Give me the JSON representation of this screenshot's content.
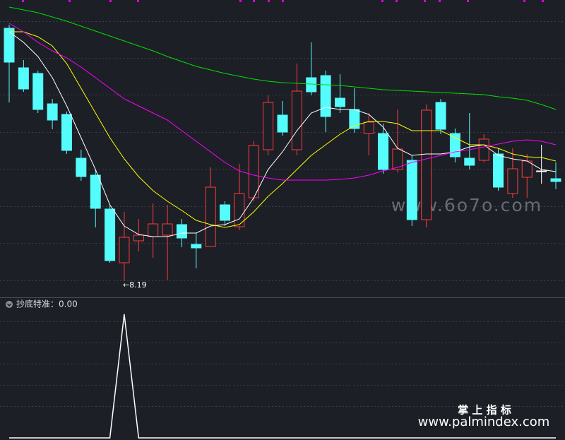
{
  "chart_data": [
    {
      "type": "candlestick",
      "open": [
        11.77,
        11.21,
        11.13,
        10.7,
        10.55,
        9.93,
        9.69,
        9.21,
        8.45,
        8.76,
        8.82,
        8.84,
        8.99,
        8.71,
        8.68,
        9.27,
        8.96,
        9.37,
        10.05,
        10.54,
        10.05,
        11.07,
        11.1,
        10.78,
        10.62,
        10.28,
        10.28,
        9.77,
        9.9,
        9.06,
        10.72,
        10.28,
        9.93,
        9.9,
        9.99,
        9.43,
        9.66,
        9.75,
        9.64
      ],
      "close": [
        11.29,
        10.91,
        10.62,
        10.47,
        10.04,
        9.67,
        9.22,
        8.48,
        8.81,
        8.84,
        9.0,
        9.0,
        8.8,
        8.66,
        9.52,
        9.05,
        9.43,
        10.11,
        10.72,
        10.3,
        10.88,
        10.87,
        10.52,
        10.66,
        10.35,
        10.44,
        9.77,
        10.06,
        9.06,
        10.61,
        10.34,
        9.95,
        9.83,
        10.2,
        9.52,
        9.78,
        9.89,
        9.75,
        9.6
      ],
      "high": [
        11.82,
        11.32,
        11.17,
        10.77,
        10.59,
        10.05,
        9.77,
        9.27,
        9.17,
        9.07,
        9.29,
        9.27,
        9.07,
        8.87,
        9.8,
        9.32,
        9.85,
        10.17,
        10.82,
        10.74,
        11.27,
        11.57,
        11.17,
        11.12,
        10.92,
        10.57,
        10.42,
        10.62,
        9.97,
        10.69,
        10.77,
        10.35,
        10.57,
        10.27,
        10.07,
        10.07,
        9.99,
        10.12,
        9.87
      ],
      "low": [
        10.72,
        10.87,
        10.57,
        10.34,
        9.99,
        9.61,
        8.95,
        8.45,
        8.19,
        8.61,
        8.52,
        8.21,
        8.67,
        8.37,
        8.68,
        8.97,
        8.91,
        9.32,
        9.97,
        10.25,
        9.97,
        10.82,
        10.3,
        10.57,
        10.29,
        9.97,
        9.71,
        9.73,
        8.97,
        8.95,
        10.27,
        9.87,
        9.77,
        9.87,
        9.47,
        9.37,
        9.37,
        9.57,
        9.49
      ],
      "up_color": "#ff3b3b",
      "down_color": "#54fcfc",
      "flat_color": "#ffffff",
      "series": [
        {
          "color": "#ffffff",
          "values": [
            11.72,
            11.57,
            11.37,
            11.07,
            10.67,
            10.22,
            9.77,
            9.27,
            8.97,
            8.85,
            8.82,
            8.82,
            8.87,
            8.87,
            8.97,
            8.99,
            9.07,
            9.37,
            9.77,
            10.02,
            10.32,
            10.57,
            10.65,
            10.62,
            10.62,
            10.55,
            10.37,
            10.07,
            9.97,
            9.99,
            9.99,
            10.02,
            10.09,
            10.12,
            9.97,
            9.92,
            9.89,
            9.77,
            9.74
          ]
        },
        {
          "color": "#ffff00",
          "values": [
            11.72,
            11.72,
            11.65,
            11.52,
            11.27,
            10.92,
            10.57,
            10.22,
            9.92,
            9.67,
            9.47,
            9.32,
            9.19,
            9.05,
            8.99,
            8.95,
            8.99,
            9.17,
            9.39,
            9.57,
            9.77,
            9.97,
            10.12,
            10.27,
            10.39,
            10.45,
            10.45,
            10.42,
            10.32,
            10.32,
            10.32,
            10.22,
            10.12,
            10.12,
            10.07,
            9.99,
            9.95,
            9.94,
            9.89
          ]
        },
        {
          "color": "#ff00ff",
          "values": [
            11.84,
            11.72,
            11.57,
            11.45,
            11.35,
            11.22,
            11.07,
            10.92,
            10.77,
            10.67,
            10.57,
            10.47,
            10.32,
            10.17,
            10.02,
            9.87,
            9.75,
            9.69,
            9.65,
            9.62,
            9.62,
            9.62,
            9.62,
            9.63,
            9.65,
            9.69,
            9.75,
            9.8,
            9.87,
            9.92,
            9.97,
            10.02,
            10.05,
            10.09,
            10.13,
            10.17,
            10.19,
            10.17,
            10.12
          ]
        },
        {
          "color": "#00e000",
          "values": [
            12.07,
            12.03,
            11.99,
            11.93,
            11.87,
            11.8,
            11.73,
            11.66,
            11.59,
            11.52,
            11.45,
            11.37,
            11.3,
            11.23,
            11.18,
            11.13,
            11.09,
            11.05,
            11.02,
            11.0,
            10.99,
            10.98,
            10.97,
            10.96,
            10.94,
            10.92,
            10.9,
            10.89,
            10.88,
            10.87,
            10.86,
            10.85,
            10.84,
            10.83,
            10.8,
            10.78,
            10.75,
            10.69,
            10.62
          ]
        }
      ],
      "ylim": [
        7.97,
        12.17
      ],
      "annotations": [
        {
          "text": "←8.19",
          "index": 8
        }
      ]
    },
    {
      "type": "line",
      "label": "抄底特准：0.00",
      "color": "#ffffff",
      "values": [
        0,
        0,
        0,
        0,
        0,
        0,
        0,
        0,
        1,
        0,
        0,
        0,
        0,
        0,
        0,
        0,
        0,
        0,
        0,
        0,
        0,
        0,
        0,
        0,
        0,
        0,
        0,
        0,
        0,
        0,
        0,
        0,
        0,
        0,
        0,
        0,
        0,
        0,
        0
      ],
      "ylim": [
        0,
        1.13
      ]
    }
  ],
  "watermarks": [
    "www.6o7o.com",
    "掌 上 指 标",
    "www.palmindex.com"
  ]
}
